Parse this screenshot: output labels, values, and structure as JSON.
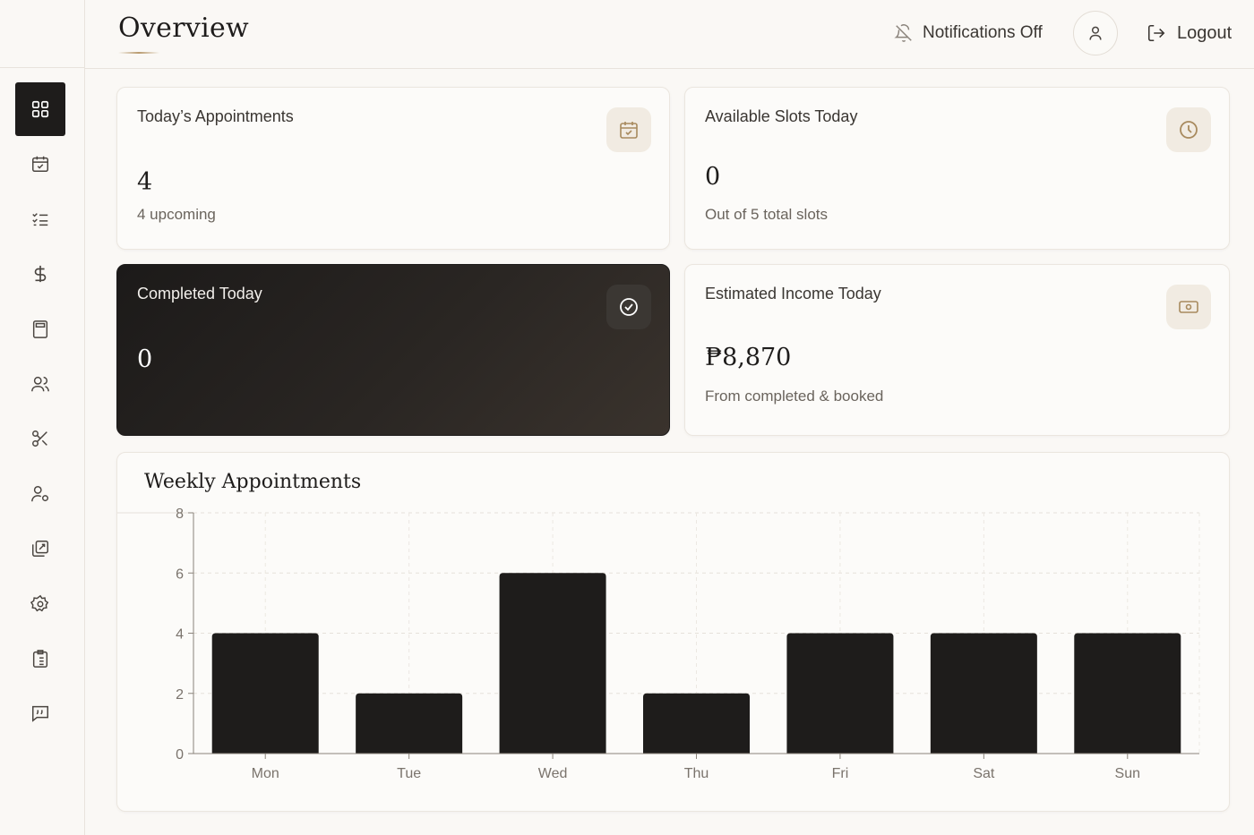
{
  "header": {
    "title": "Overview",
    "notifications_label": "Notifications Off",
    "logout_label": "Logout"
  },
  "sidebar": {
    "items": [
      {
        "icon": "dashboard-icon",
        "active": true
      },
      {
        "icon": "calendar-check-icon"
      },
      {
        "icon": "checklist-icon"
      },
      {
        "icon": "dollar-icon"
      },
      {
        "icon": "calculator-icon"
      },
      {
        "icon": "users-icon"
      },
      {
        "icon": "scissors-icon"
      },
      {
        "icon": "user-settings-icon"
      },
      {
        "icon": "gallery-edit-icon"
      },
      {
        "icon": "gear-icon"
      },
      {
        "icon": "clipboard-icon"
      },
      {
        "icon": "quote-message-icon"
      }
    ]
  },
  "cards": {
    "appointments": {
      "label": "Today’s Appointments",
      "value": "4",
      "sub": "4 upcoming",
      "icon": "calendar-check-icon"
    },
    "slots": {
      "label": "Available Slots Today",
      "value": "0",
      "sub": "Out of 5 total slots",
      "icon": "clock-icon"
    },
    "completed": {
      "label": "Completed Today",
      "value": "0",
      "icon": "check-circle-icon"
    },
    "income": {
      "label": "Estimated Income Today",
      "value": "₱8,870",
      "sub": "From completed & booked",
      "icon": "cash-icon"
    }
  },
  "chart_data": {
    "type": "bar",
    "title": "Weekly Appointments",
    "categories": [
      "Mon",
      "Tue",
      "Wed",
      "Thu",
      "Fri",
      "Sat",
      "Sun"
    ],
    "values": [
      4,
      2,
      6,
      2,
      4,
      4,
      4
    ],
    "yticks": [
      0,
      2,
      4,
      6,
      8
    ],
    "ylim": [
      0,
      8
    ],
    "grid": true,
    "bar_color": "#1e1c1b"
  }
}
